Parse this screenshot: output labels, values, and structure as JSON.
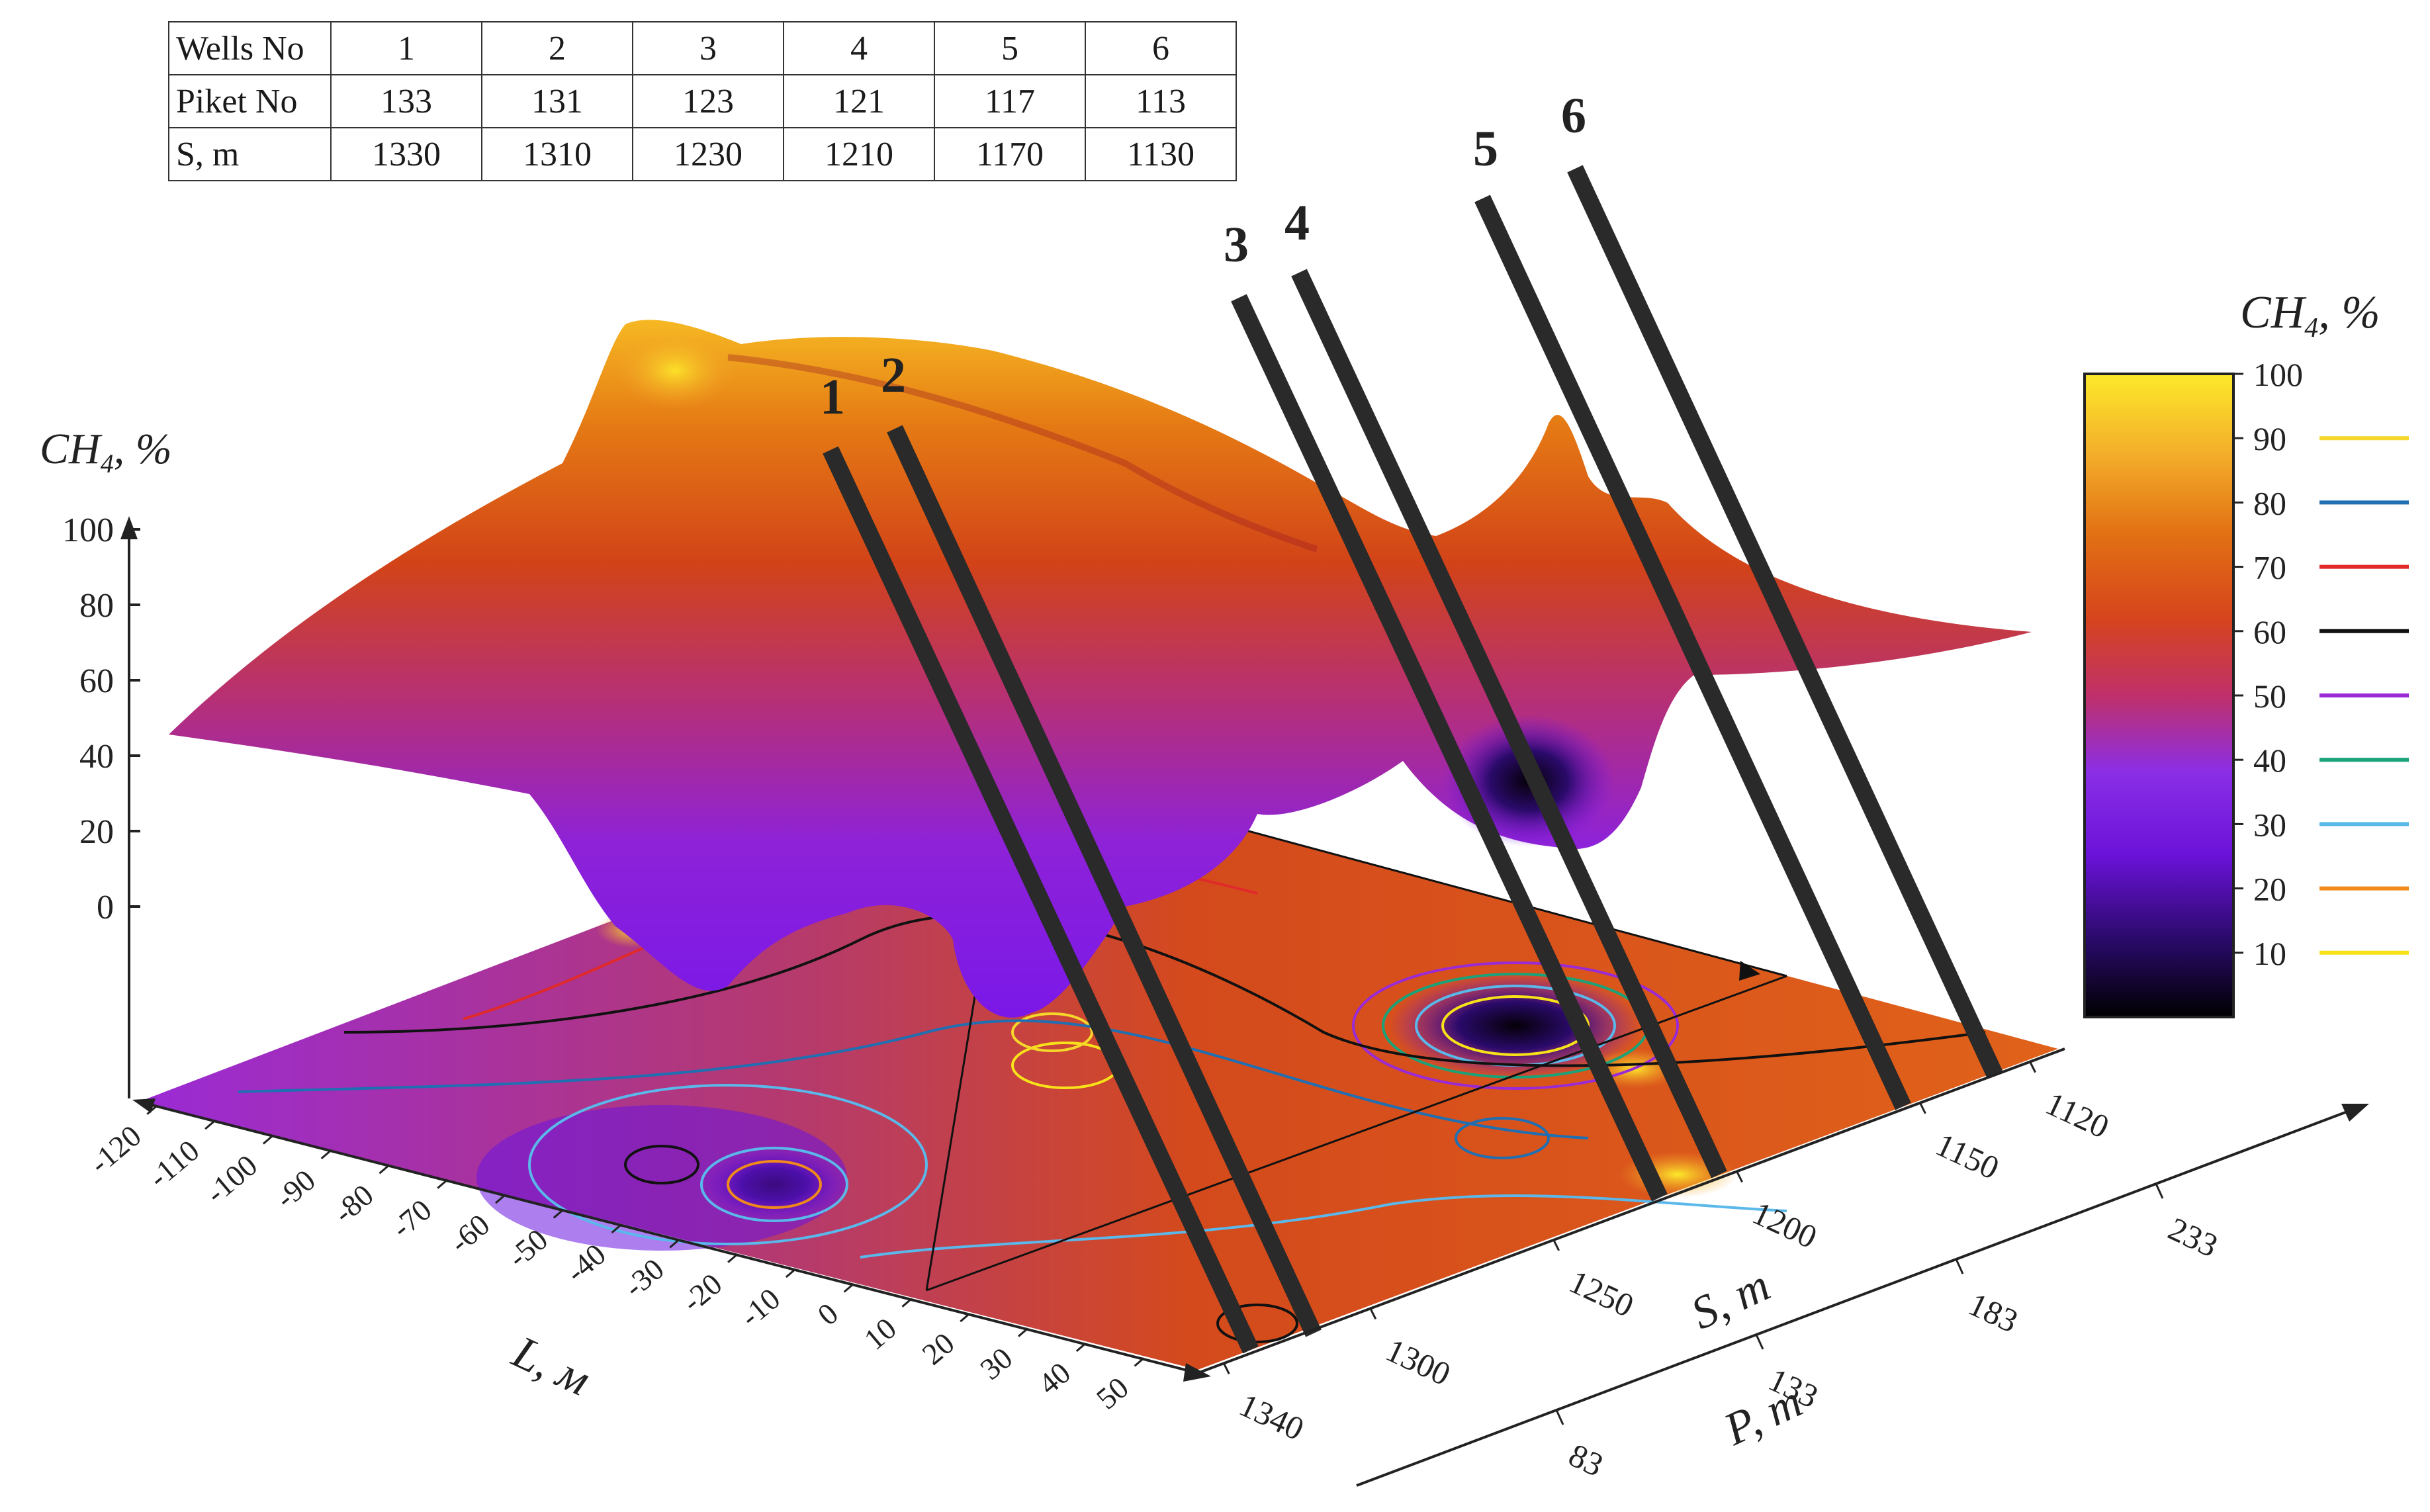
{
  "table": {
    "rows": [
      {
        "label": "Wells No",
        "values": [
          "1",
          "2",
          "3",
          "4",
          "5",
          "6"
        ]
      },
      {
        "label": "Piket No",
        "values": [
          "133",
          "131",
          "123",
          "121",
          "117",
          "113"
        ]
      },
      {
        "label": "S, m",
        "values": [
          "1330",
          "1310",
          "1230",
          "1210",
          "1170",
          "1130"
        ]
      }
    ]
  },
  "chart_data": {
    "type": "surface",
    "zlabel_main": "CH",
    "zlabel_sub": "4",
    "zlabel_rest": ", %",
    "z_ticks": [
      "100",
      "80",
      "60",
      "40",
      "20",
      "0"
    ],
    "zlim": [
      0,
      100
    ],
    "l_label": "L, м",
    "l_ticks": [
      "-120",
      "-110",
      "-100",
      "-90",
      "-80",
      "-70",
      "-60",
      "-50",
      "-40",
      "-30",
      "-20",
      "-10",
      "0",
      "10",
      "20",
      "30",
      "40",
      "50"
    ],
    "s_label": "S, m",
    "s_ticks": [
      "1340",
      "1300",
      "1250",
      "1200",
      "1150",
      "1120"
    ],
    "p_label": "P, m",
    "p_ticks": [
      "83",
      "133",
      "183",
      "233"
    ],
    "wells": [
      {
        "label": "1",
        "S": 1330
      },
      {
        "label": "2",
        "S": 1310
      },
      {
        "label": "3",
        "S": 1230
      },
      {
        "label": "4",
        "S": 1210
      },
      {
        "label": "5",
        "S": 1170
      },
      {
        "label": "6",
        "S": 1130
      }
    ],
    "colorbar": {
      "title_main": "CH",
      "title_sub": "4",
      "title_rest": ", %",
      "range": [
        0,
        100
      ],
      "ticks": [
        "100",
        "90",
        "80",
        "70",
        "60",
        "50",
        "40",
        "30",
        "20",
        "10"
      ],
      "stops": [
        "#000000",
        "#2a0a6a",
        "#6a12d8",
        "#8a2ee6",
        "#c0306a",
        "#d6451c",
        "#e27014",
        "#f3b02a",
        "#fde92a"
      ]
    },
    "contour_levels": [
      {
        "level": 90,
        "color": "#f5d62a"
      },
      {
        "level": 80,
        "color": "#1f6fb2"
      },
      {
        "level": 70,
        "color": "#e02a2a"
      },
      {
        "level": 60,
        "color": "#111111"
      },
      {
        "level": 50,
        "color": "#9a2ad6"
      },
      {
        "level": 40,
        "color": "#1aa37a"
      },
      {
        "level": 30,
        "color": "#5ab8ea"
      },
      {
        "level": 20,
        "color": "#f08a1a"
      },
      {
        "level": 10,
        "color": "#f7e21a"
      }
    ]
  }
}
